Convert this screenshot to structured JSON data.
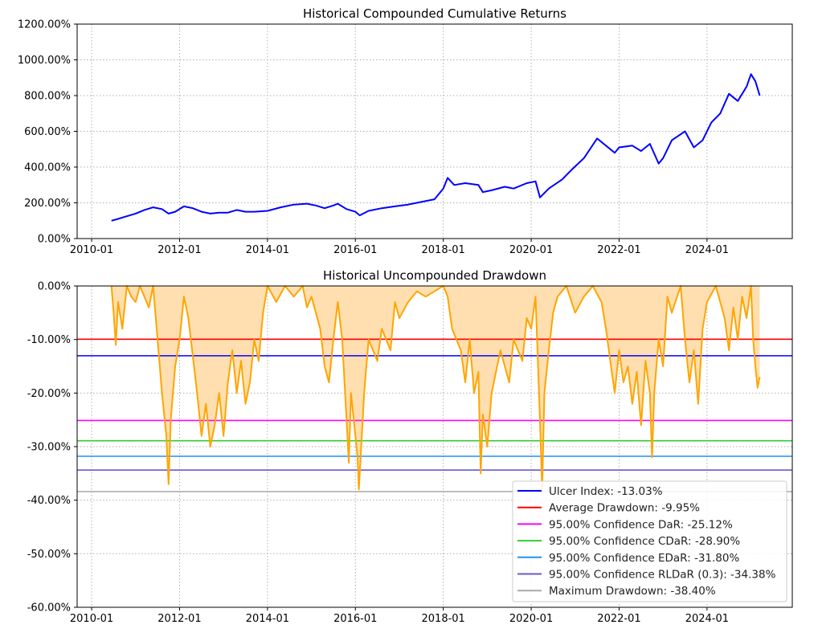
{
  "chart_data": [
    {
      "type": "line",
      "title": "Historical Compounded Cumulative Returns",
      "xlabel": "",
      "ylabel": "",
      "xlim": [
        2009.67,
        2025.94
      ],
      "ylim": [
        0,
        1200
      ],
      "grid": true,
      "x_ticks": [
        {
          "v": 2010,
          "label": "2010-01"
        },
        {
          "v": 2012,
          "label": "2012-01"
        },
        {
          "v": 2014,
          "label": "2014-01"
        },
        {
          "v": 2016,
          "label": "2016-01"
        },
        {
          "v": 2018,
          "label": "2018-01"
        },
        {
          "v": 2020,
          "label": "2020-01"
        },
        {
          "v": 2022,
          "label": "2022-01"
        },
        {
          "v": 2024,
          "label": "2024-01"
        }
      ],
      "y_ticks": [
        {
          "v": 0,
          "label": "0.00%"
        },
        {
          "v": 200,
          "label": "200.00%"
        },
        {
          "v": 400,
          "label": "400.00%"
        },
        {
          "v": 600,
          "label": "600.00%"
        },
        {
          "v": 800,
          "label": "800.00%"
        },
        {
          "v": 1000,
          "label": "1000.00%"
        },
        {
          "v": 1200,
          "label": "1200.00%"
        }
      ],
      "series": [
        {
          "name": "Cumulative Returns",
          "color": "#0000ff",
          "x": [
            2010.45,
            2010.6,
            2010.8,
            2011.0,
            2011.2,
            2011.4,
            2011.6,
            2011.75,
            2011.9,
            2012.1,
            2012.3,
            2012.5,
            2012.7,
            2012.9,
            2013.1,
            2013.3,
            2013.5,
            2013.7,
            2014.0,
            2014.3,
            2014.6,
            2014.9,
            2015.1,
            2015.3,
            2015.5,
            2015.6,
            2015.8,
            2016.0,
            2016.1,
            2016.3,
            2016.6,
            2016.9,
            2017.2,
            2017.5,
            2017.8,
            2018.0,
            2018.1,
            2018.25,
            2018.5,
            2018.8,
            2018.9,
            2019.1,
            2019.4,
            2019.6,
            2019.9,
            2020.1,
            2020.2,
            2020.4,
            2020.7,
            2020.9,
            2021.2,
            2021.5,
            2021.7,
            2021.9,
            2022.0,
            2022.3,
            2022.5,
            2022.7,
            2022.9,
            2023.0,
            2023.2,
            2023.5,
            2023.7,
            2023.9,
            2024.1,
            2024.3,
            2024.5,
            2024.7,
            2024.9,
            2025.0,
            2025.1,
            2025.2
          ],
          "y": [
            100,
            110,
            125,
            140,
            160,
            175,
            165,
            140,
            150,
            180,
            170,
            150,
            140,
            145,
            145,
            160,
            150,
            150,
            155,
            175,
            190,
            195,
            185,
            170,
            185,
            195,
            165,
            150,
            130,
            155,
            170,
            180,
            190,
            205,
            220,
            280,
            340,
            300,
            310,
            300,
            260,
            270,
            290,
            280,
            310,
            320,
            230,
            280,
            330,
            380,
            450,
            560,
            520,
            480,
            510,
            520,
            490,
            530,
            420,
            450,
            550,
            600,
            510,
            550,
            650,
            700,
            810,
            770,
            850,
            920,
            880,
            800
          ]
        }
      ]
    },
    {
      "type": "area",
      "title": "Historical Uncompounded Drawdown",
      "xlabel": "",
      "ylabel": "",
      "xlim": [
        2009.67,
        2025.94
      ],
      "ylim": [
        -60,
        0
      ],
      "grid": true,
      "legend_position": "lower-right",
      "x_ticks": [
        {
          "v": 2010,
          "label": "2010-01"
        },
        {
          "v": 2012,
          "label": "2012-01"
        },
        {
          "v": 2014,
          "label": "2014-01"
        },
        {
          "v": 2016,
          "label": "2016-01"
        },
        {
          "v": 2018,
          "label": "2018-01"
        },
        {
          "v": 2020,
          "label": "2020-01"
        },
        {
          "v": 2022,
          "label": "2022-01"
        },
        {
          "v": 2024,
          "label": "2024-01"
        }
      ],
      "y_ticks": [
        {
          "v": 0,
          "label": "0.00%"
        },
        {
          "v": -10,
          "label": "-10.00%"
        },
        {
          "v": -20,
          "label": "-20.00%"
        },
        {
          "v": -30,
          "label": "-30.00%"
        },
        {
          "v": -40,
          "label": "-40.00%"
        },
        {
          "v": -50,
          "label": "-50.00%"
        },
        {
          "v": -60,
          "label": "-60.00%"
        }
      ],
      "series": [
        {
          "name": "Drawdown",
          "color": "#ffa500",
          "fill": "#ffdfb0",
          "x": [
            2010.45,
            2010.5,
            2010.55,
            2010.6,
            2010.7,
            2010.8,
            2010.9,
            2011.0,
            2011.1,
            2011.3,
            2011.4,
            2011.5,
            2011.6,
            2011.7,
            2011.75,
            2011.8,
            2011.9,
            2012.0,
            2012.1,
            2012.2,
            2012.3,
            2012.4,
            2012.5,
            2012.6,
            2012.7,
            2012.8,
            2012.9,
            2013.0,
            2013.1,
            2013.2,
            2013.3,
            2013.4,
            2013.5,
            2013.6,
            2013.7,
            2013.8,
            2013.9,
            2014.0,
            2014.2,
            2014.4,
            2014.6,
            2014.8,
            2014.9,
            2015.0,
            2015.2,
            2015.3,
            2015.4,
            2015.5,
            2015.6,
            2015.7,
            2015.8,
            2015.85,
            2015.9,
            2016.0,
            2016.05,
            2016.08,
            2016.2,
            2016.3,
            2016.5,
            2016.6,
            2016.8,
            2016.9,
            2017.0,
            2017.2,
            2017.4,
            2017.6,
            2017.8,
            2018.0,
            2018.1,
            2018.2,
            2018.4,
            2018.5,
            2018.6,
            2018.7,
            2018.8,
            2018.85,
            2018.9,
            2019.0,
            2019.1,
            2019.3,
            2019.5,
            2019.6,
            2019.8,
            2019.9,
            2020.0,
            2020.1,
            2020.2,
            2020.25,
            2020.3,
            2020.4,
            2020.5,
            2020.6,
            2020.8,
            2021.0,
            2021.2,
            2021.4,
            2021.6,
            2021.7,
            2021.8,
            2021.9,
            2022.0,
            2022.1,
            2022.2,
            2022.3,
            2022.4,
            2022.5,
            2022.6,
            2022.7,
            2022.75,
            2022.8,
            2022.9,
            2023.0,
            2023.1,
            2023.2,
            2023.4,
            2023.5,
            2023.6,
            2023.7,
            2023.8,
            2023.9,
            2024.0,
            2024.2,
            2024.4,
            2024.5,
            2024.6,
            2024.7,
            2024.8,
            2024.9,
            2025.0,
            2025.05,
            2025.1,
            2025.15,
            2025.2
          ],
          "y": [
            0,
            -5,
            -11,
            -3,
            -8,
            0,
            -2,
            -3,
            0,
            -4,
            0,
            -10,
            -20,
            -28,
            -37,
            -25,
            -15,
            -10,
            -2,
            -6,
            -13,
            -20,
            -28,
            -22,
            -30,
            -26,
            -20,
            -28,
            -18,
            -12,
            -20,
            -14,
            -22,
            -18,
            -10,
            -14,
            -5,
            0,
            -3,
            0,
            -2,
            0,
            -4,
            -2,
            -8,
            -15,
            -18,
            -10,
            -3,
            -10,
            -25,
            -33,
            -20,
            -28,
            -32,
            -38,
            -20,
            -10,
            -14,
            -8,
            -12,
            -3,
            -6,
            -3,
            -1,
            -2,
            -1,
            0,
            -2,
            -8,
            -12,
            -18,
            -10,
            -20,
            -16,
            -35,
            -24,
            -30,
            -20,
            -12,
            -18,
            -10,
            -14,
            -6,
            -8,
            -2,
            -25,
            -38,
            -20,
            -12,
            -5,
            -2,
            0,
            -5,
            -2,
            0,
            -3,
            -8,
            -14,
            -20,
            -12,
            -18,
            -15,
            -22,
            -16,
            -26,
            -14,
            -20,
            -32,
            -20,
            -10,
            -15,
            -2,
            -5,
            0,
            -10,
            -18,
            -12,
            -22,
            -8,
            -3,
            0,
            -6,
            -12,
            -4,
            -10,
            -2,
            -6,
            0,
            -10,
            -15,
            -19,
            -17
          ]
        }
      ],
      "hlines": [
        {
          "label": "Ulcer Index: -13.03%",
          "value": -13.03,
          "color": "#0000ff"
        },
        {
          "label": "Average Drawdown: -9.95%",
          "value": -9.95,
          "color": "#ff0000"
        },
        {
          "label": "95.00% Confidence DaR: -25.12%",
          "value": -25.12,
          "color": "#ff00ff"
        },
        {
          "label": "95.00% Confidence CDaR: -28.90%",
          "value": -28.9,
          "color": "#32cd32"
        },
        {
          "label": "95.00% Confidence EDaR: -31.80%",
          "value": -31.8,
          "color": "#1e90ff"
        },
        {
          "label": "95.00% Confidence RLDaR (0.3): -34.38%",
          "value": -34.38,
          "color": "#6a5acd"
        },
        {
          "label": "Maximum Drawdown: -38.40%",
          "value": -38.4,
          "color": "#a9a9a9"
        }
      ]
    }
  ]
}
